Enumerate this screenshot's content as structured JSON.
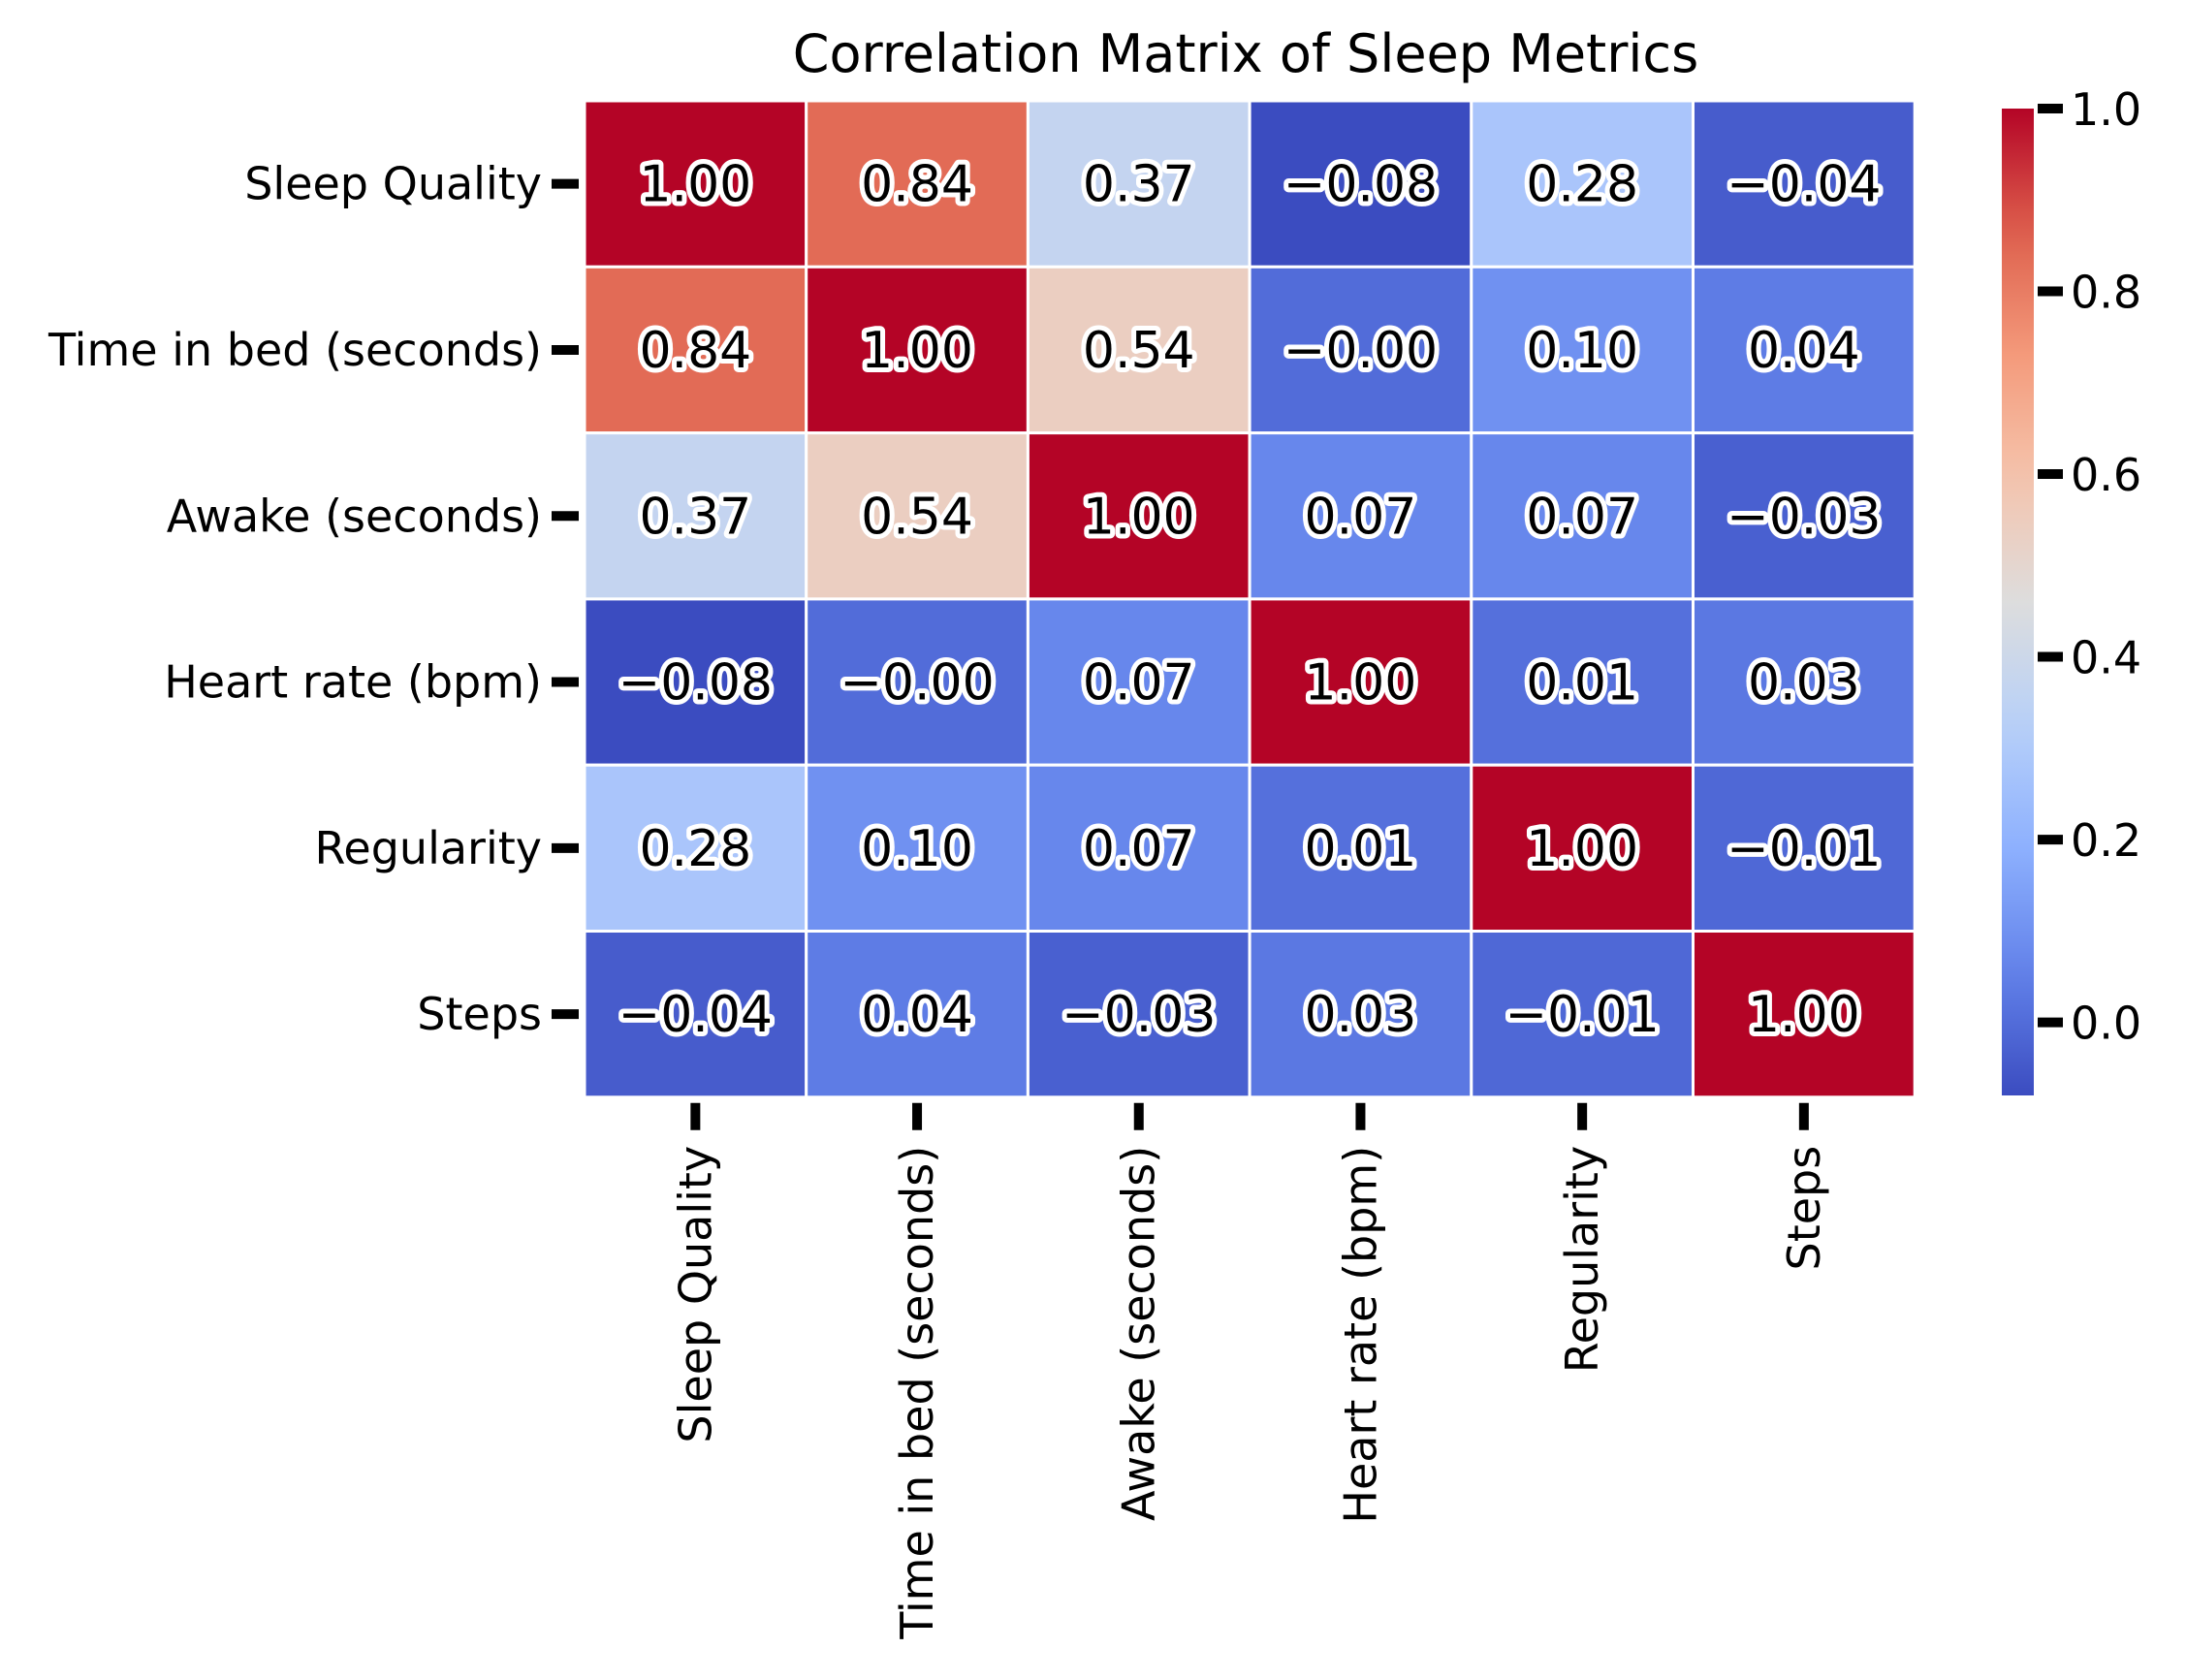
{
  "chart_data": {
    "type": "heatmap",
    "title": "Correlation Matrix of Sleep Metrics",
    "row_labels": [
      "Sleep Quality",
      "Time in bed (seconds)",
      "Awake (seconds)",
      "Heart rate (bpm)",
      "Regularity",
      "Steps"
    ],
    "col_labels": [
      "Sleep Quality",
      "Time in bed (seconds)",
      "Awake (seconds)",
      "Heart rate (bpm)",
      "Regularity",
      "Steps"
    ],
    "values": [
      [
        1.0,
        0.84,
        0.37,
        -0.08,
        0.28,
        -0.04
      ],
      [
        0.84,
        1.0,
        0.54,
        -0.0,
        0.1,
        0.04
      ],
      [
        0.37,
        0.54,
        1.0,
        0.07,
        0.07,
        -0.03
      ],
      [
        -0.08,
        -0.0,
        0.07,
        1.0,
        0.01,
        0.03
      ],
      [
        0.28,
        0.1,
        0.07,
        0.01,
        1.0,
        -0.01
      ],
      [
        -0.04,
        0.04,
        -0.03,
        0.03,
        -0.01,
        1.0
      ]
    ],
    "value_labels": [
      [
        "1.00",
        "0.84",
        "0.37",
        "−0.08",
        "0.28",
        "−0.04"
      ],
      [
        "0.84",
        "1.00",
        "0.54",
        "−0.00",
        "0.10",
        "0.04"
      ],
      [
        "0.37",
        "0.54",
        "1.00",
        "0.07",
        "0.07",
        "−0.03"
      ],
      [
        "−0.08",
        "−0.00",
        "0.07",
        "1.00",
        "0.01",
        "0.03"
      ],
      [
        "0.28",
        "0.10",
        "0.07",
        "0.01",
        "1.00",
        "−0.01"
      ],
      [
        "−0.04",
        "0.04",
        "−0.03",
        "0.03",
        "−0.01",
        "1.00"
      ]
    ],
    "colormap": "coolwarm",
    "vrange": [
      -0.08,
      1.0
    ],
    "colorbar_ticks": [
      0.0,
      0.2,
      0.4,
      0.6,
      0.8,
      1.0
    ],
    "colorbar_tick_labels": [
      "0.0",
      "0.2",
      "0.4",
      "0.6",
      "0.8",
      "1.0"
    ],
    "grid_line_color": "#ffffff",
    "colors": {
      "low": "#3b4cc0",
      "mid": "#dddddd",
      "high": "#b40426"
    }
  }
}
